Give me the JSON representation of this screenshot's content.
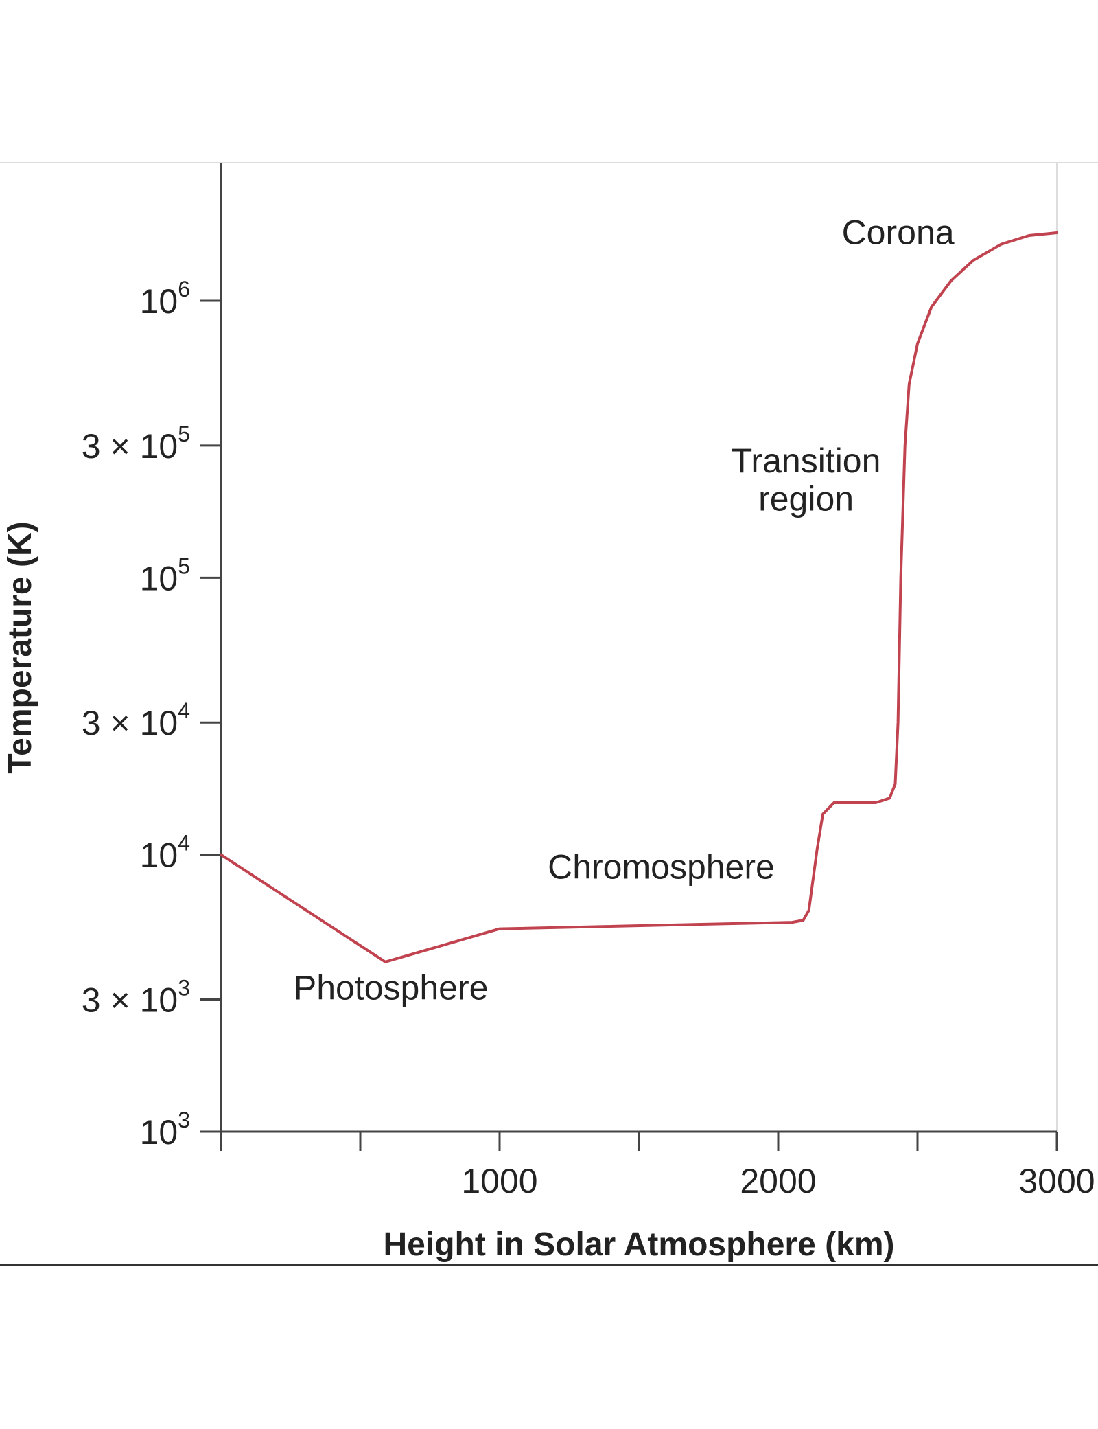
{
  "chart_data": {
    "type": "line",
    "title": "",
    "xlabel": "Height in Solar Atmosphere (km)",
    "ylabel": "Temperature (K)",
    "x_scale": "linear",
    "y_scale": "log",
    "xlim": [
      0,
      3000
    ],
    "ylim": [
      1000,
      2000000
    ],
    "x_ticks": [
      0,
      500,
      1000,
      1500,
      2000,
      2500,
      3000
    ],
    "x_tick_labels": [
      {
        "value": 1000,
        "text": "1000"
      },
      {
        "value": 2000,
        "text": "2000"
      },
      {
        "value": 3000,
        "text": "3000"
      }
    ],
    "y_tick_labels": [
      {
        "value": 1000,
        "prefix": "",
        "base": "10",
        "exp": "3"
      },
      {
        "value": 3000,
        "prefix": "3 × ",
        "base": "10",
        "exp": "3"
      },
      {
        "value": 10000,
        "prefix": "",
        "base": "10",
        "exp": "4"
      },
      {
        "value": 30000,
        "prefix": "3 × ",
        "base": "10",
        "exp": "4"
      },
      {
        "value": 100000,
        "prefix": "",
        "base": "10",
        "exp": "5"
      },
      {
        "value": 300000,
        "prefix": "3 × ",
        "base": "10",
        "exp": "5"
      },
      {
        "value": 1000000,
        "prefix": "",
        "base": "10",
        "exp": "6"
      }
    ],
    "grid": false,
    "line_color": "#c0434f",
    "series": [
      {
        "x": [
          0,
          590,
          1000,
          2050,
          2090,
          2110,
          2140,
          2160,
          2200,
          2350,
          2400,
          2420,
          2430,
          2440,
          2455,
          2470,
          2500,
          2550,
          2620,
          2700,
          2800,
          2900,
          3000
        ],
        "y": [
          10000,
          4100,
          5400,
          5700,
          5800,
          6300,
          10500,
          14000,
          15400,
          15400,
          16000,
          18000,
          30000,
          100000,
          300000,
          500000,
          700000,
          950000,
          1180000,
          1400000,
          1600000,
          1720000,
          1760000
        ]
      }
    ],
    "annotations": [
      {
        "text": "Photosphere",
        "x": 610,
        "y": 3000
      },
      {
        "text": "Chromosphere",
        "x": 1580,
        "y": 8200
      },
      {
        "text": "Transition",
        "x": 2100,
        "y": 240000
      },
      {
        "text": "region",
        "x": 2100,
        "y": 175000
      },
      {
        "text": "Corona",
        "x": 2430,
        "y": 1600000
      }
    ]
  }
}
